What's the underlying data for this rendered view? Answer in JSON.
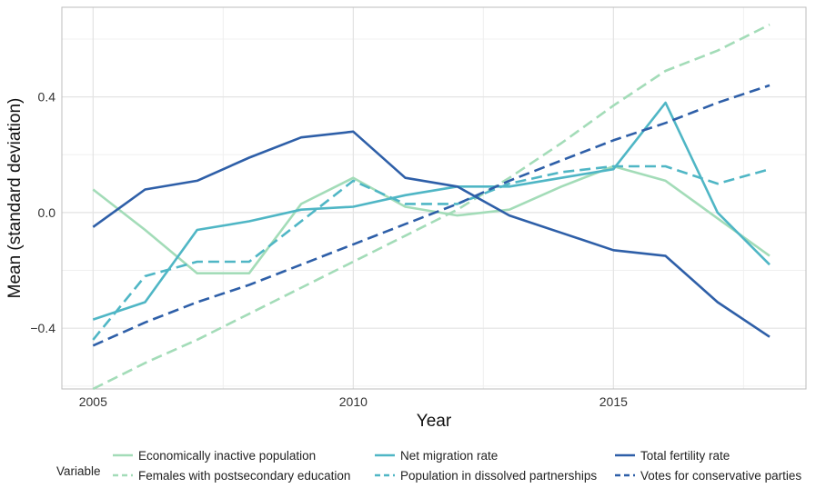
{
  "chart_data": {
    "type": "line",
    "xlabel": "Year",
    "ylabel": "Mean (standard deviation)",
    "xlim": [
      2004.4,
      2018.7
    ],
    "ylim": [
      -0.61,
      0.71
    ],
    "x_ticks": [
      2005,
      2010,
      2015
    ],
    "x_tick_labels": [
      "2005",
      "2010",
      "2015"
    ],
    "y_ticks": [
      -0.4,
      0.0,
      0.4
    ],
    "y_tick_labels": [
      "−0.4",
      "0.0",
      "0.4"
    ],
    "grid": true,
    "legend_title": "Variable",
    "legend_position": "bottom",
    "x": [
      2005,
      2006,
      2007,
      2008,
      2009,
      2010,
      2011,
      2012,
      2013,
      2014,
      2015,
      2016,
      2017,
      2018
    ],
    "series": [
      {
        "name": "Economically inactive population",
        "color": "#a3dcb8",
        "dash": "solid",
        "values": [
          0.08,
          -0.06,
          -0.21,
          -0.21,
          0.03,
          0.12,
          0.02,
          -0.01,
          0.01,
          0.09,
          0.16,
          0.11,
          -0.02,
          -0.15
        ]
      },
      {
        "name": "Females with postsecondary education",
        "color": "#a3dcb8",
        "dash": "dashed",
        "values": [
          -0.61,
          -0.52,
          -0.44,
          -0.35,
          -0.26,
          -0.17,
          -0.08,
          0.01,
          0.12,
          0.24,
          0.37,
          0.49,
          0.56,
          0.65
        ]
      },
      {
        "name": "Net migration rate",
        "color": "#4fb6c5",
        "dash": "solid",
        "values": [
          -0.37,
          -0.31,
          -0.06,
          -0.03,
          0.01,
          0.02,
          0.06,
          0.09,
          0.09,
          0.12,
          0.15,
          0.38,
          0.0,
          -0.18
        ]
      },
      {
        "name": "Population in dissolved partnerships",
        "color": "#4fb6c5",
        "dash": "dashed",
        "values": [
          -0.44,
          -0.22,
          -0.17,
          -0.17,
          -0.03,
          0.11,
          0.03,
          0.03,
          0.1,
          0.14,
          0.16,
          0.16,
          0.1,
          0.15
        ]
      },
      {
        "name": "Total fertility rate",
        "color": "#2e5fa8",
        "dash": "solid",
        "values": [
          -0.05,
          0.08,
          0.11,
          0.19,
          0.26,
          0.28,
          0.12,
          0.09,
          -0.01,
          -0.07,
          -0.13,
          -0.15,
          -0.31,
          -0.43
        ]
      },
      {
        "name": "Votes for conservative parties",
        "color": "#2e5fa8",
        "dash": "dashed",
        "values": [
          -0.46,
          -0.38,
          -0.31,
          -0.25,
          -0.18,
          -0.11,
          -0.04,
          0.03,
          0.11,
          0.18,
          0.25,
          0.31,
          0.38,
          0.44
        ]
      }
    ]
  }
}
